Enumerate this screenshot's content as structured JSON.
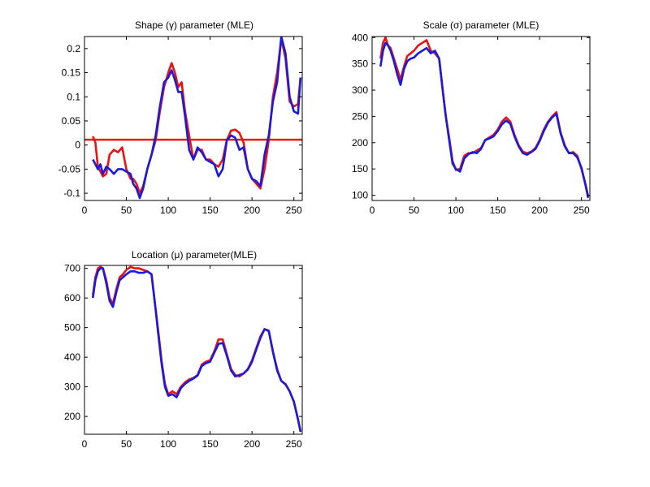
{
  "figure": {
    "background": "#ffffff"
  },
  "colors": {
    "series_a": "#ee1111",
    "series_b": "#1a1add",
    "reference_line": "#ee1111"
  },
  "chart_data": [
    {
      "type": "line",
      "title": "Shape (γ) parameter (MLE)",
      "xlabel": "",
      "ylabel": "",
      "xlim": [
        0,
        260
      ],
      "ylim": [
        -0.115,
        0.225
      ],
      "xticks": [
        0,
        50,
        100,
        150,
        200,
        250
      ],
      "yticks": [
        -0.1,
        -0.05,
        0,
        0.05,
        0.1,
        0.15,
        0.2
      ],
      "ytick_labels": [
        "-0.1",
        "-0.05",
        "0",
        "0.05",
        "0.1",
        "0.15",
        "0.2"
      ],
      "hline": 0.011,
      "series": [
        {
          "color": "red",
          "x": [
            10,
            13,
            16,
            19,
            22,
            26,
            30,
            35,
            40,
            45,
            50,
            55,
            58,
            62,
            66,
            70,
            75,
            80,
            85,
            90,
            95,
            100,
            104,
            108,
            112,
            116,
            120,
            125,
            130,
            135,
            140,
            145,
            150,
            155,
            160,
            165,
            170,
            175,
            180,
            185,
            190,
            195,
            200,
            205,
            210,
            215,
            220,
            225,
            230,
            235,
            240,
            245,
            250,
            255,
            258
          ],
          "y": [
            0.018,
            0.005,
            -0.045,
            -0.055,
            -0.065,
            -0.06,
            -0.02,
            -0.01,
            -0.015,
            -0.005,
            -0.05,
            -0.07,
            -0.07,
            -0.08,
            -0.1,
            -0.085,
            -0.05,
            -0.02,
            0.01,
            0.07,
            0.12,
            0.15,
            0.17,
            0.15,
            0.12,
            0.13,
            0.07,
            0.02,
            -0.03,
            -0.01,
            -0.01,
            -0.03,
            -0.03,
            -0.04,
            -0.045,
            -0.03,
            0.01,
            0.03,
            0.032,
            0.025,
            0.005,
            -0.05,
            -0.07,
            -0.08,
            -0.09,
            -0.05,
            0.01,
            0.1,
            0.15,
            0.22,
            0.18,
            0.09,
            0.08,
            0.085,
            0.14
          ]
        },
        {
          "color": "blue",
          "x": [
            10,
            13,
            16,
            19,
            22,
            26,
            30,
            35,
            40,
            45,
            50,
            55,
            58,
            62,
            66,
            70,
            75,
            80,
            85,
            90,
            95,
            100,
            104,
            108,
            112,
            116,
            120,
            125,
            130,
            135,
            140,
            145,
            150,
            155,
            160,
            165,
            170,
            175,
            180,
            185,
            190,
            195,
            200,
            205,
            210,
            215,
            220,
            225,
            230,
            235,
            240,
            245,
            250,
            255,
            258
          ],
          "y": [
            -0.03,
            -0.04,
            -0.05,
            -0.04,
            -0.06,
            -0.045,
            -0.05,
            -0.06,
            -0.05,
            -0.05,
            -0.055,
            -0.06,
            -0.08,
            -0.09,
            -0.11,
            -0.09,
            -0.05,
            -0.02,
            0.02,
            0.08,
            0.13,
            0.14,
            0.155,
            0.135,
            0.11,
            0.11,
            0.06,
            -0.01,
            -0.03,
            -0.005,
            -0.015,
            -0.03,
            -0.035,
            -0.04,
            -0.065,
            -0.05,
            0.01,
            0.02,
            0.015,
            -0.01,
            -0.005,
            -0.05,
            -0.07,
            -0.075,
            -0.085,
            -0.02,
            0.02,
            0.09,
            0.13,
            0.225,
            0.19,
            0.1,
            0.07,
            0.065,
            0.14
          ]
        }
      ]
    },
    {
      "type": "line",
      "title": "Scale  (σ) parameter (MLE)",
      "xlabel": "",
      "ylabel": "",
      "xlim": [
        0,
        260
      ],
      "ylim": [
        90,
        402
      ],
      "xticks": [
        0,
        50,
        100,
        150,
        200,
        250
      ],
      "yticks": [
        100,
        150,
        200,
        250,
        300,
        350,
        400
      ],
      "ytick_labels": [
        "100",
        "150",
        "200",
        "250",
        "300",
        "350",
        "400"
      ],
      "series": [
        {
          "color": "red",
          "x": [
            10,
            13,
            16,
            19,
            22,
            26,
            30,
            34,
            38,
            42,
            46,
            50,
            55,
            60,
            65,
            70,
            75,
            80,
            85,
            88,
            92,
            96,
            100,
            105,
            110,
            115,
            120,
            125,
            130,
            135,
            140,
            145,
            150,
            155,
            160,
            165,
            170,
            175,
            180,
            185,
            190,
            195,
            200,
            205,
            210,
            215,
            220,
            225,
            230,
            235,
            240,
            245,
            250,
            255,
            258
          ],
          "y": [
            360,
            390,
            400,
            385,
            380,
            360,
            340,
            320,
            345,
            365,
            370,
            375,
            385,
            390,
            395,
            375,
            370,
            360,
            290,
            250,
            210,
            165,
            148,
            150,
            175,
            180,
            180,
            185,
            190,
            205,
            210,
            215,
            225,
            240,
            248,
            240,
            215,
            195,
            183,
            180,
            183,
            190,
            205,
            225,
            240,
            250,
            258,
            220,
            195,
            180,
            182,
            175,
            150,
            120,
            98
          ]
        },
        {
          "color": "blue",
          "x": [
            10,
            13,
            16,
            19,
            22,
            26,
            30,
            34,
            38,
            42,
            46,
            50,
            55,
            60,
            65,
            70,
            75,
            80,
            85,
            88,
            92,
            96,
            100,
            105,
            110,
            115,
            120,
            125,
            130,
            135,
            140,
            145,
            150,
            155,
            160,
            165,
            170,
            175,
            180,
            185,
            190,
            195,
            200,
            205,
            210,
            215,
            220,
            225,
            230,
            235,
            240,
            245,
            250,
            255,
            258
          ],
          "y": [
            345,
            375,
            390,
            385,
            375,
            355,
            330,
            310,
            340,
            355,
            360,
            362,
            370,
            375,
            380,
            370,
            375,
            360,
            290,
            250,
            205,
            160,
            150,
            145,
            170,
            178,
            182,
            180,
            188,
            205,
            208,
            212,
            222,
            235,
            242,
            236,
            212,
            193,
            180,
            177,
            182,
            188,
            203,
            222,
            238,
            248,
            255,
            218,
            193,
            180,
            180,
            172,
            152,
            118,
            95
          ]
        }
      ]
    },
    {
      "type": "line",
      "title": "Location (μ) parameter(MLE)",
      "xlabel": "",
      "ylabel": "",
      "xlim": [
        0,
        260
      ],
      "ylim": [
        140,
        710
      ],
      "xticks": [
        0,
        50,
        100,
        150,
        200,
        250
      ],
      "yticks": [
        200,
        300,
        400,
        500,
        600,
        700
      ],
      "ytick_labels": [
        "200",
        "300",
        "400",
        "500",
        "600",
        "700"
      ],
      "series": [
        {
          "color": "red",
          "x": [
            10,
            13,
            16,
            19,
            22,
            26,
            30,
            34,
            38,
            42,
            46,
            50,
            55,
            60,
            65,
            70,
            75,
            80,
            85,
            88,
            92,
            96,
            100,
            105,
            110,
            115,
            120,
            125,
            130,
            135,
            140,
            145,
            150,
            155,
            160,
            165,
            170,
            175,
            180,
            185,
            190,
            195,
            200,
            205,
            210,
            215,
            220,
            225,
            230,
            235,
            240,
            245,
            250,
            255,
            258
          ],
          "y": [
            610,
            670,
            700,
            705,
            700,
            660,
            600,
            580,
            630,
            670,
            680,
            695,
            705,
            700,
            700,
            695,
            690,
            680,
            560,
            490,
            390,
            310,
            275,
            285,
            275,
            300,
            315,
            325,
            330,
            340,
            375,
            385,
            390,
            420,
            460,
            460,
            410,
            360,
            340,
            335,
            345,
            360,
            390,
            430,
            470,
            495,
            490,
            420,
            360,
            320,
            310,
            285,
            250,
            190,
            150
          ]
        },
        {
          "color": "blue",
          "x": [
            10,
            13,
            16,
            19,
            22,
            26,
            30,
            34,
            38,
            42,
            46,
            50,
            55,
            60,
            65,
            70,
            75,
            80,
            85,
            88,
            92,
            96,
            100,
            105,
            110,
            115,
            120,
            125,
            130,
            135,
            140,
            145,
            150,
            155,
            160,
            165,
            170,
            175,
            180,
            185,
            190,
            195,
            200,
            205,
            210,
            215,
            220,
            225,
            230,
            235,
            240,
            245,
            250,
            255,
            258
          ],
          "y": [
            600,
            660,
            690,
            700,
            700,
            650,
            590,
            570,
            620,
            660,
            670,
            680,
            690,
            690,
            685,
            685,
            690,
            680,
            560,
            480,
            380,
            300,
            270,
            275,
            265,
            295,
            310,
            320,
            328,
            338,
            370,
            380,
            385,
            415,
            445,
            448,
            405,
            355,
            335,
            340,
            345,
            358,
            385,
            425,
            465,
            495,
            488,
            418,
            355,
            320,
            308,
            285,
            250,
            190,
            148
          ]
        }
      ]
    }
  ]
}
